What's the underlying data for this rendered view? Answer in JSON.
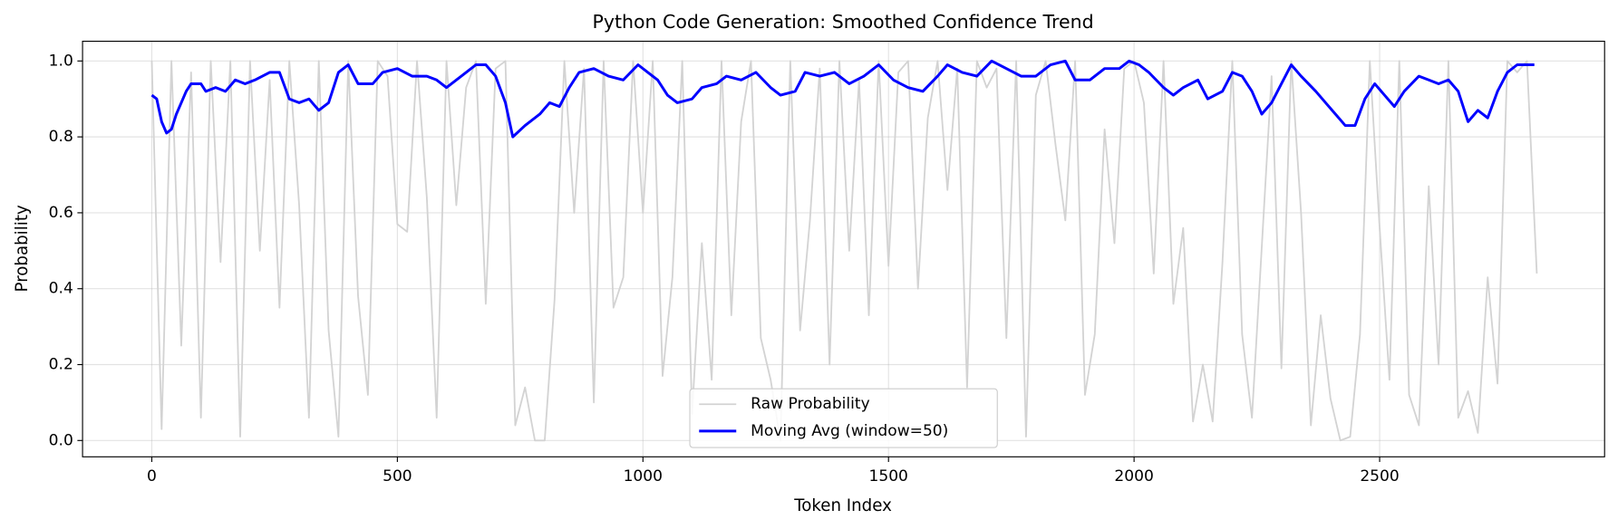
{
  "chart_data": {
    "type": "line",
    "title": "Python Code Generation: Smoothed Confidence Trend",
    "x_label": "Token Index",
    "y_label": "Probability",
    "xlim": [
      -141,
      2958
    ],
    "ylim": [
      -0.043,
      1.052
    ],
    "xticks": [
      0,
      500,
      1000,
      1500,
      2000,
      2500
    ],
    "yticks": [
      {
        "value": 0,
        "label": "0.0"
      },
      0.2,
      0.4,
      0.6,
      0.8,
      {
        "value": 1,
        "label": "1.0"
      }
    ],
    "grid": true,
    "legend": "lower center",
    "series": [
      {
        "name": "Raw Probability",
        "color": "#d3d3d3",
        "x": [
          0,
          20,
          40,
          60,
          80,
          100,
          120,
          140,
          160,
          180,
          200,
          220,
          240,
          260,
          280,
          300,
          320,
          340,
          360,
          380,
          400,
          420,
          440,
          460,
          480,
          500,
          520,
          540,
          560,
          580,
          600,
          620,
          640,
          660,
          680,
          700,
          720,
          740,
          760,
          780,
          800,
          820,
          840,
          860,
          880,
          900,
          920,
          940,
          960,
          980,
          1000,
          1020,
          1040,
          1060,
          1080,
          1100,
          1120,
          1140,
          1160,
          1180,
          1200,
          1220,
          1240,
          1260,
          1280,
          1300,
          1320,
          1340,
          1360,
          1380,
          1400,
          1420,
          1440,
          1460,
          1480,
          1500,
          1520,
          1540,
          1560,
          1580,
          1600,
          1620,
          1640,
          1660,
          1680,
          1700,
          1720,
          1740,
          1760,
          1780,
          1800,
          1820,
          1840,
          1860,
          1880,
          1900,
          1920,
          1940,
          1960,
          1980,
          2000,
          2020,
          2040,
          2060,
          2080,
          2100,
          2120,
          2140,
          2160,
          2180,
          2200,
          2220,
          2240,
          2260,
          2280,
          2300,
          2320,
          2340,
          2360,
          2380,
          2400,
          2420,
          2440,
          2460,
          2480,
          2500,
          2520,
          2540,
          2560,
          2580,
          2600,
          2620,
          2640,
          2660,
          2680,
          2700,
          2720,
          2740,
          2760,
          2780,
          2800,
          2820
        ],
        "values": [
          1,
          0.03,
          1,
          0.25,
          0.97,
          0.06,
          1,
          0.47,
          1,
          0.01,
          1,
          0.5,
          0.95,
          0.35,
          1,
          0.62,
          0.06,
          1,
          0.29,
          0.01,
          1,
          0.38,
          0.12,
          1,
          0.96,
          0.57,
          0.55,
          1,
          0.64,
          0.06,
          1,
          0.62,
          0.93,
          1,
          0.36,
          0.98,
          1,
          0.04,
          0.14,
          0.0,
          0.0,
          0.37,
          1,
          0.6,
          0.98,
          0.1,
          1,
          0.35,
          0.43,
          1,
          0.6,
          1,
          0.17,
          0.43,
          1,
          0.07,
          0.52,
          0.16,
          1,
          0.33,
          0.84,
          1,
          0.27,
          0.16,
          0.0,
          1,
          0.29,
          0.58,
          0.98,
          0.2,
          1,
          0.5,
          0.95,
          0.33,
          1,
          0.46,
          0.97,
          1,
          0.4,
          0.85,
          1,
          0.66,
          0.98,
          0.14,
          1,
          0.93,
          0.98,
          0.27,
          1,
          0.01,
          0.91,
          1,
          0.78,
          0.58,
          1,
          0.12,
          0.28,
          0.82,
          0.52,
          0.98,
          1,
          0.89,
          0.44,
          1,
          0.36,
          0.56,
          0.05,
          0.2,
          0.05,
          0.47,
          1,
          0.28,
          0.06,
          0.51,
          0.96,
          0.19,
          1,
          0.6,
          0.04,
          0.33,
          0.11,
          0.0,
          0.01,
          0.28,
          1,
          0.56,
          0.16,
          1,
          0.12,
          0.04,
          0.67,
          0.2,
          1,
          0.06,
          0.13,
          0.02,
          0.43,
          0.15,
          1,
          0.97,
          1,
          0.44
        ]
      },
      {
        "name": "Moving Avg (window=50)",
        "color": "#0000ff",
        "x": [
          0,
          10,
          20,
          30,
          40,
          50,
          60,
          70,
          80,
          100,
          110,
          130,
          150,
          170,
          190,
          210,
          240,
          260,
          280,
          300,
          320,
          340,
          360,
          380,
          400,
          420,
          450,
          470,
          500,
          530,
          560,
          580,
          600,
          620,
          640,
          660,
          680,
          700,
          720,
          735,
          760,
          790,
          810,
          830,
          850,
          870,
          900,
          930,
          960,
          990,
          1010,
          1030,
          1050,
          1070,
          1100,
          1120,
          1150,
          1170,
          1200,
          1230,
          1260,
          1280,
          1310,
          1330,
          1360,
          1390,
          1420,
          1450,
          1480,
          1510,
          1540,
          1570,
          1600,
          1620,
          1650,
          1680,
          1710,
          1740,
          1770,
          1800,
          1830,
          1860,
          1880,
          1910,
          1940,
          1970,
          1990,
          2010,
          2030,
          2060,
          2080,
          2100,
          2130,
          2150,
          2180,
          2200,
          2220,
          2240,
          2260,
          2280,
          2300,
          2320,
          2340,
          2370,
          2390,
          2410,
          2430,
          2450,
          2470,
          2490,
          2510,
          2530,
          2550,
          2580,
          2600,
          2620,
          2640,
          2660,
          2680,
          2700,
          2720,
          2740,
          2760,
          2780,
          2800,
          2815
        ],
        "values": [
          0.91,
          0.9,
          0.84,
          0.81,
          0.82,
          0.86,
          0.89,
          0.92,
          0.94,
          0.94,
          0.92,
          0.93,
          0.92,
          0.95,
          0.94,
          0.95,
          0.97,
          0.97,
          0.9,
          0.89,
          0.9,
          0.87,
          0.89,
          0.97,
          0.99,
          0.94,
          0.94,
          0.97,
          0.98,
          0.96,
          0.96,
          0.95,
          0.93,
          0.95,
          0.97,
          0.99,
          0.99,
          0.96,
          0.89,
          0.8,
          0.83,
          0.86,
          0.89,
          0.88,
          0.93,
          0.97,
          0.98,
          0.96,
          0.95,
          0.99,
          0.97,
          0.95,
          0.91,
          0.89,
          0.9,
          0.93,
          0.94,
          0.96,
          0.95,
          0.97,
          0.93,
          0.91,
          0.92,
          0.97,
          0.96,
          0.97,
          0.94,
          0.96,
          0.99,
          0.95,
          0.93,
          0.92,
          0.96,
          0.99,
          0.97,
          0.96,
          1.0,
          0.98,
          0.96,
          0.96,
          0.99,
          1.0,
          0.95,
          0.95,
          0.98,
          0.98,
          1.0,
          0.99,
          0.97,
          0.93,
          0.91,
          0.93,
          0.95,
          0.9,
          0.92,
          0.97,
          0.96,
          0.92,
          0.86,
          0.89,
          0.94,
          0.99,
          0.96,
          0.92,
          0.89,
          0.86,
          0.83,
          0.83,
          0.9,
          0.94,
          0.91,
          0.88,
          0.92,
          0.96,
          0.95,
          0.94,
          0.95,
          0.92,
          0.84,
          0.87,
          0.85,
          0.92,
          0.97,
          0.99,
          0.99,
          0.99
        ]
      }
    ]
  }
}
